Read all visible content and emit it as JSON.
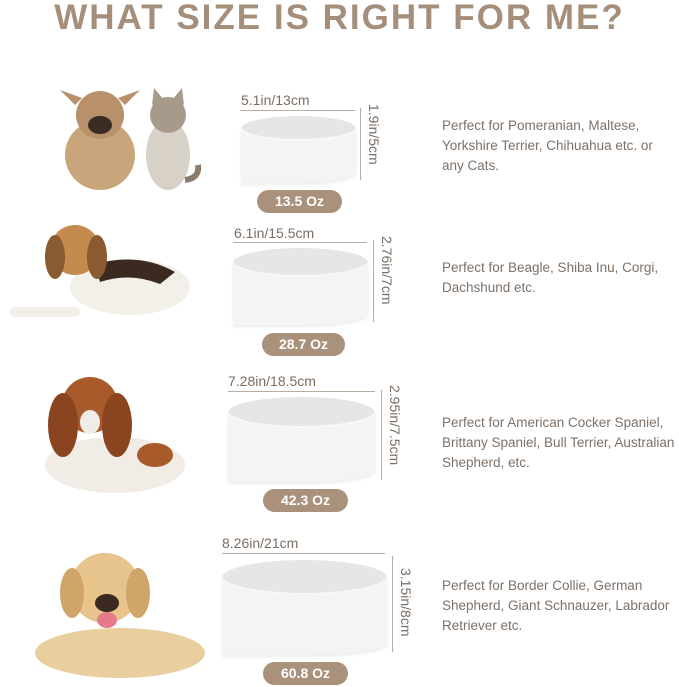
{
  "title": "WHAT SIZE IS RIGHT FOR ME?",
  "accent_color": "#a9917b",
  "sizes": [
    {
      "width": "5.1in/13cm",
      "height": "1.9in/5cm",
      "capacity": "13.5 Oz",
      "description": "Perfect for Pomeranian, Maltese, Yorkshire Terrier, Chihuahua etc. or any Cats.",
      "pets": "french-bulldog-puppy-and-kitten-photo"
    },
    {
      "width": "6.1in/15.5cm",
      "height": "2.76in/7cm",
      "capacity": "28.7 Oz",
      "description": "Perfect for Beagle, Shiba Inu, Corgi, Dachshund etc.",
      "pets": "beagle-photo"
    },
    {
      "width": "7.28in/18.5cm",
      "height": "2.95in/7.5cm",
      "capacity": "42.3 Oz",
      "description": "Perfect for American Cocker Spaniel, Brittany Spaniel, Bull Terrier, Australian Shepherd, etc.",
      "pets": "spaniel-photo"
    },
    {
      "width": "8.26in/21cm",
      "height": "3.15in/8cm",
      "capacity": "60.8 Oz",
      "description": "Perfect for Border Collie, German Shepherd, Giant Schnauzer, Labrador Retriever etc.",
      "pets": "labrador-photo"
    }
  ]
}
